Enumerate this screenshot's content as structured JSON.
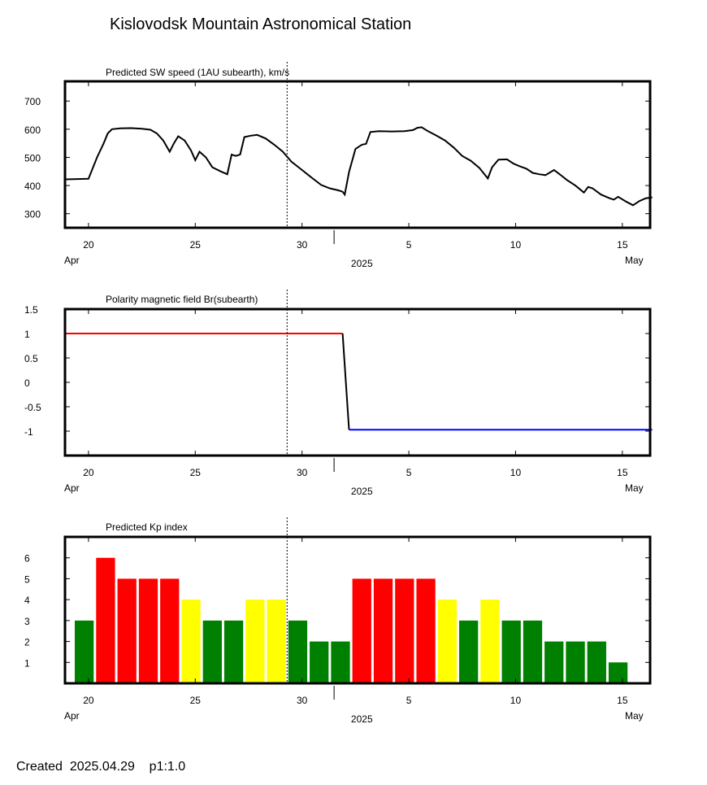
{
  "header": {
    "title": "Kislovodsk Mountain Astronomical Station"
  },
  "footer": {
    "created": "Created  2025.04.29    p1:1.0"
  },
  "x_axis": {
    "ticks": [
      {
        "day": 20,
        "label": "20"
      },
      {
        "day": 25,
        "label": "25"
      },
      {
        "day": 30,
        "label": "30"
      },
      {
        "day": 35,
        "label": "5"
      },
      {
        "day": 40,
        "label": "10"
      },
      {
        "day": 45,
        "label": "15"
      }
    ],
    "month_label_start": "Apr",
    "month_label_end": "May",
    "year_label": "2025",
    "today_marker_day": 29.3
  },
  "colors": {
    "kp_green": "#008000",
    "kp_yellow": "#ffff00",
    "kp_red": "#ff0000",
    "polarity_positive": "#ff0000",
    "polarity_negative": "#0000ff"
  },
  "chart_data": [
    {
      "type": "line",
      "title": "Predicted SW speed (1AU subearth), km/s",
      "ylim": [
        250,
        770
      ],
      "yticks": [
        300,
        400,
        500,
        600,
        700
      ],
      "points": [
        [
          18.9,
          422
        ],
        [
          20.0,
          424
        ],
        [
          20.4,
          500
        ],
        [
          20.7,
          548
        ],
        [
          20.9,
          585
        ],
        [
          21.1,
          600
        ],
        [
          21.5,
          603
        ],
        [
          22.0,
          604
        ],
        [
          22.5,
          602
        ],
        [
          22.9,
          598
        ],
        [
          23.2,
          585
        ],
        [
          23.5,
          560
        ],
        [
          23.8,
          520
        ],
        [
          24.0,
          550
        ],
        [
          24.2,
          575
        ],
        [
          24.5,
          560
        ],
        [
          24.8,
          525
        ],
        [
          25.0,
          490
        ],
        [
          25.2,
          520
        ],
        [
          25.5,
          500
        ],
        [
          25.8,
          465
        ],
        [
          26.2,
          450
        ],
        [
          26.5,
          440
        ],
        [
          26.7,
          510
        ],
        [
          26.9,
          505
        ],
        [
          27.1,
          510
        ],
        [
          27.3,
          572
        ],
        [
          27.6,
          577
        ],
        [
          27.9,
          580
        ],
        [
          28.3,
          567
        ],
        [
          28.7,
          545
        ],
        [
          29.1,
          520
        ],
        [
          29.5,
          485
        ],
        [
          30.0,
          455
        ],
        [
          30.5,
          425
        ],
        [
          30.9,
          402
        ],
        [
          31.3,
          390
        ],
        [
          31.7,
          383
        ],
        [
          31.9,
          378
        ],
        [
          32.0,
          368
        ],
        [
          32.2,
          448
        ],
        [
          32.5,
          530
        ],
        [
          32.8,
          545
        ],
        [
          33.0,
          548
        ],
        [
          33.2,
          590
        ],
        [
          33.6,
          593
        ],
        [
          34.2,
          592
        ],
        [
          34.8,
          593
        ],
        [
          35.2,
          597
        ],
        [
          35.4,
          605
        ],
        [
          35.6,
          607
        ],
        [
          35.9,
          593
        ],
        [
          36.3,
          577
        ],
        [
          36.7,
          560
        ],
        [
          37.1,
          535
        ],
        [
          37.5,
          505
        ],
        [
          37.9,
          488
        ],
        [
          38.3,
          463
        ],
        [
          38.7,
          425
        ],
        [
          38.9,
          465
        ],
        [
          39.2,
          492
        ],
        [
          39.6,
          493
        ],
        [
          39.9,
          478
        ],
        [
          40.2,
          468
        ],
        [
          40.5,
          460
        ],
        [
          40.8,
          445
        ],
        [
          41.1,
          440
        ],
        [
          41.4,
          437
        ],
        [
          41.8,
          455
        ],
        [
          42.1,
          438
        ],
        [
          42.4,
          420
        ],
        [
          42.8,
          400
        ],
        [
          43.2,
          375
        ],
        [
          43.4,
          395
        ],
        [
          43.6,
          390
        ],
        [
          44.0,
          368
        ],
        [
          44.4,
          355
        ],
        [
          44.6,
          350
        ],
        [
          44.8,
          360
        ],
        [
          45.2,
          342
        ],
        [
          45.5,
          330
        ],
        [
          45.8,
          345
        ],
        [
          46.1,
          355
        ],
        [
          46.4,
          358
        ]
      ]
    },
    {
      "type": "line",
      "title": "Polarity magnetic field  Br(subearth)",
      "ylim": [
        -1.5,
        1.5
      ],
      "yticks": [
        1.5,
        1,
        0.5,
        0,
        -0.5,
        -1
      ],
      "ytick_labels": [
        "1.5",
        "1",
        "0.5",
        "0",
        "-0.5",
        "-1"
      ],
      "segments": [
        {
          "color": "#ff0000",
          "points": [
            [
              18.9,
              1
            ],
            [
              31.9,
              1
            ]
          ]
        },
        {
          "color": "#000000",
          "points": [
            [
              31.9,
              1
            ],
            [
              32.2,
              -0.97
            ]
          ]
        },
        {
          "color": "#0000ff",
          "points": [
            [
              32.2,
              -0.97
            ],
            [
              46.4,
              -0.97
            ]
          ]
        }
      ]
    },
    {
      "type": "bar",
      "title": "Predicted Kp index",
      "ylim": [
        0,
        7
      ],
      "yticks": [
        1,
        2,
        3,
        4,
        5,
        6
      ],
      "bar_day_start": 19.3,
      "bar_day_width": 1.0,
      "bars": [
        {
          "value": 3,
          "color": "#008000"
        },
        {
          "value": 6,
          "color": "#ff0000"
        },
        {
          "value": 5,
          "color": "#ff0000"
        },
        {
          "value": 5,
          "color": "#ff0000"
        },
        {
          "value": 5,
          "color": "#ff0000"
        },
        {
          "value": 4,
          "color": "#ffff00"
        },
        {
          "value": 3,
          "color": "#008000"
        },
        {
          "value": 3,
          "color": "#008000"
        },
        {
          "value": 4,
          "color": "#ffff00"
        },
        {
          "value": 4,
          "color": "#ffff00"
        },
        {
          "value": 3,
          "color": "#008000"
        },
        {
          "value": 2,
          "color": "#008000"
        },
        {
          "value": 2,
          "color": "#008000"
        },
        {
          "value": 5,
          "color": "#ff0000"
        },
        {
          "value": 5,
          "color": "#ff0000"
        },
        {
          "value": 5,
          "color": "#ff0000"
        },
        {
          "value": 5,
          "color": "#ff0000"
        },
        {
          "value": 4,
          "color": "#ffff00"
        },
        {
          "value": 3,
          "color": "#008000"
        },
        {
          "value": 4,
          "color": "#ffff00"
        },
        {
          "value": 3,
          "color": "#008000"
        },
        {
          "value": 3,
          "color": "#008000"
        },
        {
          "value": 2,
          "color": "#008000"
        },
        {
          "value": 2,
          "color": "#008000"
        },
        {
          "value": 2,
          "color": "#008000"
        },
        {
          "value": 1,
          "color": "#008000"
        }
      ]
    }
  ]
}
